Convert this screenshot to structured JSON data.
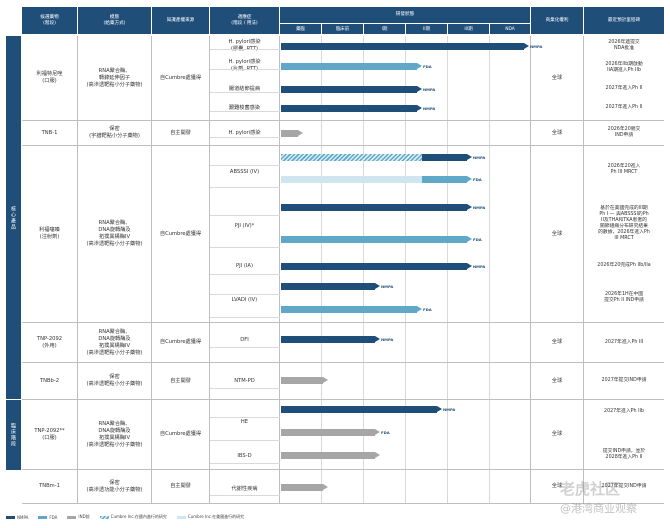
{
  "headers": {
    "col1": "候選藥物\n(階段)",
    "col2": "模態\n(給藥方式)",
    "col3": "知識產權來源",
    "col4": "適應症\n(階段 / 用法)",
    "col5": "研發狀態",
    "col6": "商業化權利",
    "col7": "最近預計里程碑",
    "stages": [
      "藥臨",
      "臨床前",
      "I期",
      "II期",
      "III期",
      "NDA"
    ]
  },
  "categories": {
    "main": "核心產品",
    "clinical": "臨床階段"
  },
  "drugs": [
    {
      "name": "利福特尼唑\n(口服)",
      "modality": "RNA聚合酶、\n轉錄延伸因子\n(高滲透靶點小分子藥物)",
      "ip": "自Cumbre處獲得",
      "rights": "全球"
    },
    {
      "name": "TNB-1",
      "modality": "保密\n(宇譜靶點小分子藥物)",
      "ip": "自主開發",
      "rights": "全球"
    },
    {
      "name": "利福噻嗪\n(注射劑)",
      "modality": "RNA聚合酶、\nDNA旋轉酶及\n拓撲異構酶IV\n(高滲透靶點小分子藥物)",
      "ip": "自Cumbre處獲得",
      "rights": "全球"
    },
    {
      "name": "TNP-2092\n(外用)",
      "modality": "RNA聚合酶、\nDNA旋轉酶及\n拓撲異構酶IV\n(高滲透靶點小分子藥物)",
      "ip": "自Cumbre處獲得",
      "rights": "全球"
    },
    {
      "name": "TNBb-2",
      "modality": "保密\n(高滲透靶點小分子藥物)",
      "ip": "自主開發",
      "rights": "全球"
    },
    {
      "name": "TNP-2092**\n(口服)",
      "modality": "RNA聚合酶、\nDNA旋轉酶及\n拓撲異構酶IV\n(高滲透靶點小分子藥物)",
      "ip": "自Cumbre處獲得",
      "rights": "全球"
    },
    {
      "name": "TNBm-1",
      "modality": "保密\n(高滲透功能小分子藥物)",
      "ip": "自主開發",
      "rights": "全球"
    }
  ],
  "indications": [
    {
      "label": "H. pylori感染\n(膠囊, RTT)",
      "progress": 0.98,
      "color": "navy",
      "tag": "NMPA",
      "milestone": "2026年遞提交\nNDA批准"
    },
    {
      "label": "H. pylori感染\n(片劑, RTT)",
      "progress": 0.55,
      "color": "teal",
      "tag": "FDA",
      "milestone": "2026年IIb期啟動\nIIA期進入Ph IIb"
    },
    {
      "label": "腸道結節提病",
      "progress": 0.55,
      "color": "navy",
      "tag": "NMPA",
      "milestone": "2027年進入Ph II"
    },
    {
      "label": "艱難梭菌感染",
      "progress": 0.55,
      "color": "navy",
      "tag": "NMPA",
      "milestone": "2027年進入Ph II"
    },
    {
      "label": "H. pylori感染",
      "progress": 0.07,
      "color": "gray",
      "tag": "",
      "milestone": "2026年20親交\nIND申請"
    },
    {
      "label": "ABSSSI (IV)",
      "progress": 0.75,
      "color": "navy",
      "tag": "NMPA",
      "milestone": "2026年20進入\nPh III MRCT"
    },
    {
      "label": "ABSSSI (IV) FDA",
      "progress": 0.75,
      "color": "teal",
      "tag": "FDA",
      "milestone": ""
    },
    {
      "label": "PJI (IV)*",
      "progress": 0.75,
      "color": "navy",
      "tag": "NMPA",
      "milestone": "基於在美國完成的III期\nPh I — 與ABSSSI的Ph\nII及THA和TKA患者的\n關節組織分布研究結果\n的數據，2026年進入Ph\nIII MRCT"
    },
    {
      "label": "PJI (IV) FDA",
      "progress": 0.75,
      "color": "teal",
      "tag": "FDA",
      "milestone": ""
    },
    {
      "label": "PJI (IA)",
      "progress": 0.75,
      "color": "navy",
      "tag": "NMPA",
      "milestone": "2026年20完成Ph IIb/IIa"
    },
    {
      "label": "LVADI (IV)",
      "progress": 0.38,
      "color": "navy",
      "tag": "NMPA",
      "milestone": "2026年1H在中國\n提交Ph II IND申請"
    },
    {
      "label": "LVADI (IV) FDA",
      "progress": 0.55,
      "color": "teal",
      "tag": "FDA",
      "milestone": ""
    },
    {
      "label": "DFI",
      "progress": 0.38,
      "color": "navy",
      "tag": "NMPA",
      "milestone": "2027年進入Ph III"
    },
    {
      "label": "NTM-PD",
      "progress": 0.17,
      "color": "gray",
      "tag": "",
      "milestone": "2027年提交IND申請"
    },
    {
      "label": "HE",
      "progress": 0.63,
      "color": "navy",
      "tag": "NMPA",
      "milestone": "2027年進入Ph IIb"
    },
    {
      "label": "HE FDA",
      "progress": 0.38,
      "color": "gray",
      "tag": "FDA",
      "milestone": ""
    },
    {
      "label": "IBS-D",
      "progress": 0.38,
      "color": "gray",
      "tag": "",
      "milestone": "提交IND申請，並於\n2028年進入Ph II"
    },
    {
      "label": "代謝性疾病",
      "progress": 0.17,
      "color": "gray",
      "tag": "",
      "milestone": "2027年提交IND申請"
    }
  ],
  "legend": [
    "NMPA",
    "FDA",
    "IND前",
    "Cumbre Inc.在國內進行的研究",
    "Cumbre Inc.在美國進行的研究"
  ],
  "watermark": [
    "老虎社区",
    "@港湾商业观察"
  ],
  "colors": {
    "navy": "#1f4e79",
    "teal": "#5fa8c8",
    "gray": "#a6a6a6"
  }
}
